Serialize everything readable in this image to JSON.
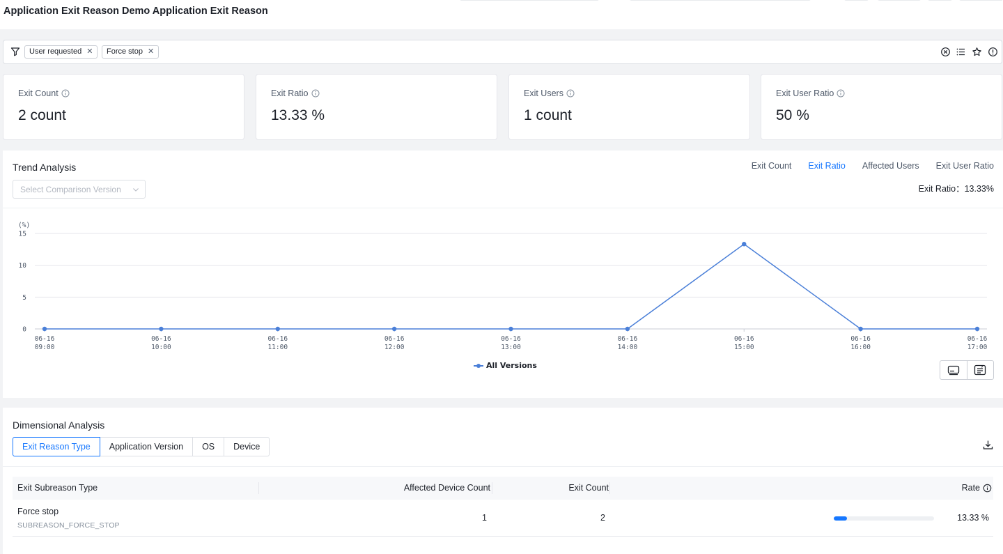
{
  "header": {
    "title": "Application Exit Reason Demo Application Exit Reason"
  },
  "filters": {
    "tags": [
      {
        "label": "User requested"
      },
      {
        "label": "Force stop"
      }
    ]
  },
  "metrics": [
    {
      "label": "Exit Count",
      "value": "2 count"
    },
    {
      "label": "Exit Ratio",
      "value": "13.33 %"
    },
    {
      "label": "Exit Users",
      "value": "1 count"
    },
    {
      "label": "Exit User Ratio",
      "value": "50 %"
    }
  ],
  "trend": {
    "title": "Trend Analysis",
    "compare_placeholder": "Select Comparison Version",
    "tabs": [
      "Exit Count",
      "Exit Ratio",
      "Affected Users",
      "Exit User Ratio"
    ],
    "active_tab": "Exit Ratio",
    "readout": "Exit Ratio：13.33%"
  },
  "chart_data": {
    "type": "line",
    "ylabel": "(%)",
    "ylim": [
      0,
      15
    ],
    "yticks": [
      0,
      5,
      10,
      15
    ],
    "x": [
      "06-16 09:00",
      "06-16 10:00",
      "06-16 11:00",
      "06-16 12:00",
      "06-16 13:00",
      "06-16 14:00",
      "06-16 15:00",
      "06-16 16:00",
      "06-16 17:00"
    ],
    "series": [
      {
        "name": "All Versions",
        "values": [
          0,
          0,
          0,
          0,
          0,
          0,
          13.33,
          0,
          0
        ],
        "color": "#4a7fd8"
      }
    ],
    "grid": true,
    "legend": "bottom-center"
  },
  "dimensional": {
    "title": "Dimensional Analysis",
    "tabs": [
      "Exit Reason Type",
      "Application Version",
      "OS",
      "Device"
    ],
    "active_tab": "Exit Reason Type",
    "columns": [
      "Exit Subreason Type",
      "Affected Device Count",
      "Exit Count",
      "Rate"
    ],
    "rows": [
      {
        "name": "Force stop",
        "code": "SUBREASON_FORCE_STOP",
        "devices": "1",
        "count": "2",
        "rate": "13.33 %",
        "rate_fraction": 0.1333
      }
    ]
  },
  "icons": {
    "filter": "funnel-icon",
    "clear": "clear-circle-icon",
    "list": "list-icon",
    "favorite": "star-icon",
    "info": "info-icon",
    "download": "download-icon",
    "view_chart": "chart-view-icon",
    "view_table": "table-view-icon"
  },
  "colors": {
    "accent": "#1677ff",
    "series": "#4a7fd8"
  }
}
